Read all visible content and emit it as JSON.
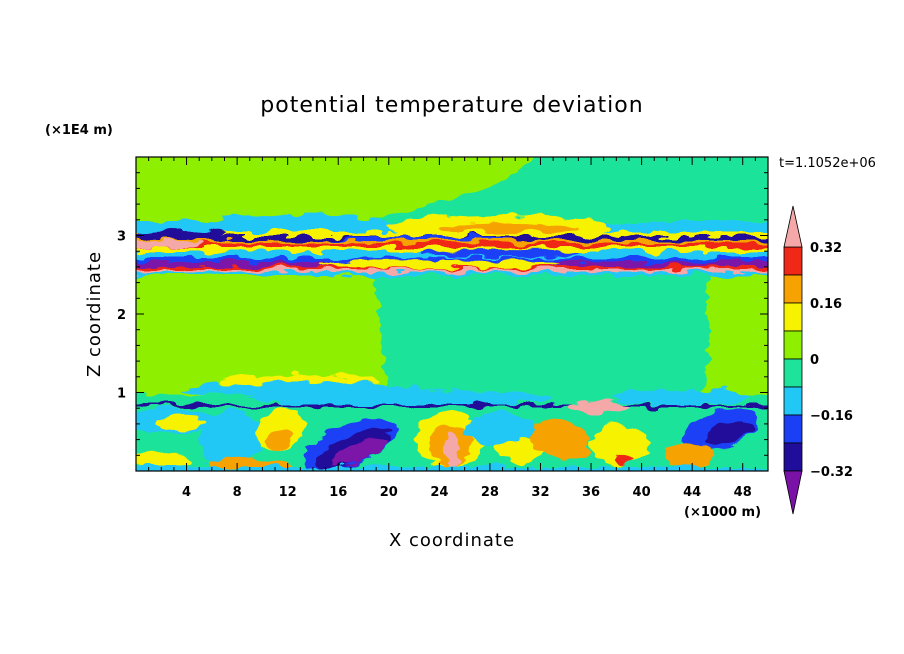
{
  "chart_data": {
    "type": "heatmap",
    "title": "potential temperature deviation",
    "xlabel": "X coordinate",
    "ylabel": "Z coordinate",
    "x_unit": "(×1000 m)",
    "y_unit": "(×1E4 m)",
    "time_label": "t=1.1052e+06",
    "xlim": [
      0,
      50
    ],
    "ylim": [
      0,
      4
    ],
    "x_ticks": [
      "4",
      "8",
      "12",
      "16",
      "20",
      "24",
      "28",
      "32",
      "36",
      "40",
      "44",
      "48"
    ],
    "y_ticks": [
      "1",
      "2",
      "3"
    ],
    "colorbar": {
      "labels": [
        "0.32",
        "0.16",
        "0",
        "−0.16",
        "−0.32"
      ],
      "label_values": [
        0.32,
        0.16,
        0,
        -0.16,
        -0.32
      ],
      "colors": [
        "#7b12a8",
        "#200e9a",
        "#1b3ff5",
        "#22c8f5",
        "#1ee39a",
        "#8ef000",
        "#f6f200",
        "#f6a200",
        "#f02818",
        "#f5a8a8"
      ],
      "levels": [
        -0.4,
        -0.32,
        -0.24,
        -0.16,
        -0.08,
        0,
        0.08,
        0.16,
        0.24,
        0.32,
        0.4
      ]
    }
  }
}
